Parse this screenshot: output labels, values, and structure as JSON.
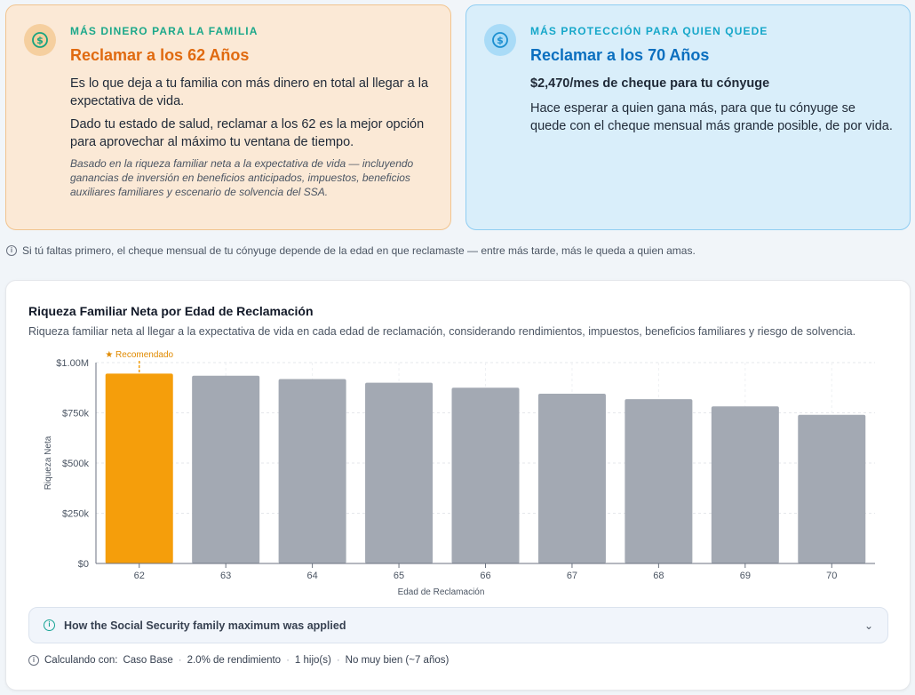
{
  "left_card": {
    "eyebrow": "MÁS DINERO PARA LA FAMILIA",
    "title": "Reclamar a los 62 Años",
    "p1": "Es lo que deja a tu familia con más dinero en total al llegar a la expectativa de vida.",
    "p2": "Dado tu estado de salud, reclamar a los 62 es la mejor opción para aprovechar al máximo tu ventana de tiempo.",
    "note": "Basado en la riqueza familiar neta a la expectativa de vida — incluyendo ganancias de inversión en beneficios anticipados, impuestos, beneficios auxiliares familiares y escenario de solvencia del SSA.",
    "icon": "dollar-coin-icon",
    "accent": "#e06a10"
  },
  "right_card": {
    "eyebrow": "MÁS PROTECCIÓN PARA QUIEN QUEDE",
    "title": "Reclamar a los 70 Años",
    "lead": "$2,470/mes de cheque para tu cónyuge",
    "p1": "Hace esperar a quien gana más, para que tu cónyuge se quede con el cheque mensual más grande posible, de por vida.",
    "icon": "dollar-coin-icon",
    "accent": "#0b6fbf"
  },
  "info_line": "Si tú faltas primero, el cheque mensual de tu cónyuge depende de la edad en que reclamaste — entre más tarde, más le queda a quien amas.",
  "chart": {
    "title": "Riqueza Familiar Neta por Edad de Reclamación",
    "subtitle": "Riqueza familiar neta al llegar a la expectativa de vida en cada edad de reclamación, considerando rendimientos, impuestos, beneficios familiares y riesgo de solvencia.",
    "recommended_label": "★ Recomendado"
  },
  "chart_data": {
    "type": "bar",
    "categories": [
      "62",
      "63",
      "64",
      "65",
      "66",
      "67",
      "68",
      "69",
      "70"
    ],
    "values": [
      945000,
      935000,
      918000,
      900000,
      875000,
      845000,
      818000,
      782000,
      740000
    ],
    "highlight_index": 0,
    "highlight_color": "#f59e0b",
    "bar_color": "#a3a9b3",
    "ylabel": "Riqueza Neta",
    "xlabel": "Edad de Reclamación",
    "ylim": [
      0,
      1000000
    ],
    "yticks": [
      "$0",
      "$250k",
      "$500k",
      "$750k",
      "$1.00M"
    ],
    "grid": true
  },
  "accordion": {
    "label": "How the Social Security family maximum was applied"
  },
  "calc": {
    "prefix": "Calculando con:",
    "scenario": "Caso Base",
    "rate": "2.0% de rendimiento",
    "children": "1 hijo(s)",
    "health": "No muy bien (~7 años)"
  }
}
